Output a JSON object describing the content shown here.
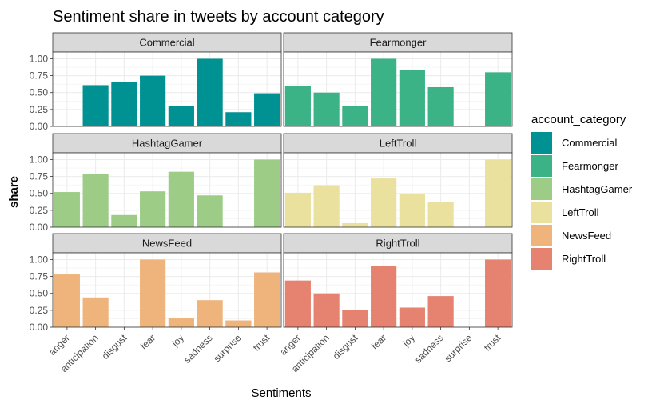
{
  "chart_data": {
    "type": "bar",
    "title": "Sentiment share in tweets by account category",
    "xlabel": "Sentiments",
    "ylabel": "share",
    "ylim": [
      0,
      1.1
    ],
    "yticks": [
      "0.00",
      "0.25",
      "0.50",
      "0.75",
      "1.00"
    ],
    "ytick_values": [
      0,
      0.25,
      0.5,
      0.75,
      1.0
    ],
    "categories": [
      "anger",
      "anticipation",
      "disgust",
      "fear",
      "joy",
      "sadness",
      "surprise",
      "trust"
    ],
    "grid": true,
    "legend_position": "right",
    "legend_title": "account_category",
    "series": [
      {
        "name": "Commercial",
        "color": "#009292",
        "values": [
          null,
          0.61,
          0.66,
          0.75,
          0.3,
          1.0,
          0.21,
          0.49
        ]
      },
      {
        "name": "Fearmonger",
        "color": "#3CB386",
        "values": [
          0.6,
          0.5,
          0.3,
          1.0,
          0.83,
          0.58,
          null,
          0.8
        ]
      },
      {
        "name": "HashtagGamer",
        "color": "#9DCC87",
        "values": [
          0.52,
          0.79,
          0.18,
          0.53,
          0.82,
          0.47,
          null,
          1.0
        ]
      },
      {
        "name": "LeftTroll",
        "color": "#E9E19D",
        "values": [
          0.51,
          0.62,
          0.06,
          0.72,
          0.49,
          0.37,
          null,
          1.0
        ]
      },
      {
        "name": "NewsFeed",
        "color": "#EEB47B",
        "values": [
          0.78,
          0.44,
          null,
          1.0,
          0.14,
          0.4,
          0.1,
          0.81
        ]
      },
      {
        "name": "RightTroll",
        "color": "#E58270",
        "values": [
          0.69,
          0.5,
          0.25,
          0.9,
          0.29,
          0.46,
          null,
          1.0
        ]
      }
    ]
  }
}
